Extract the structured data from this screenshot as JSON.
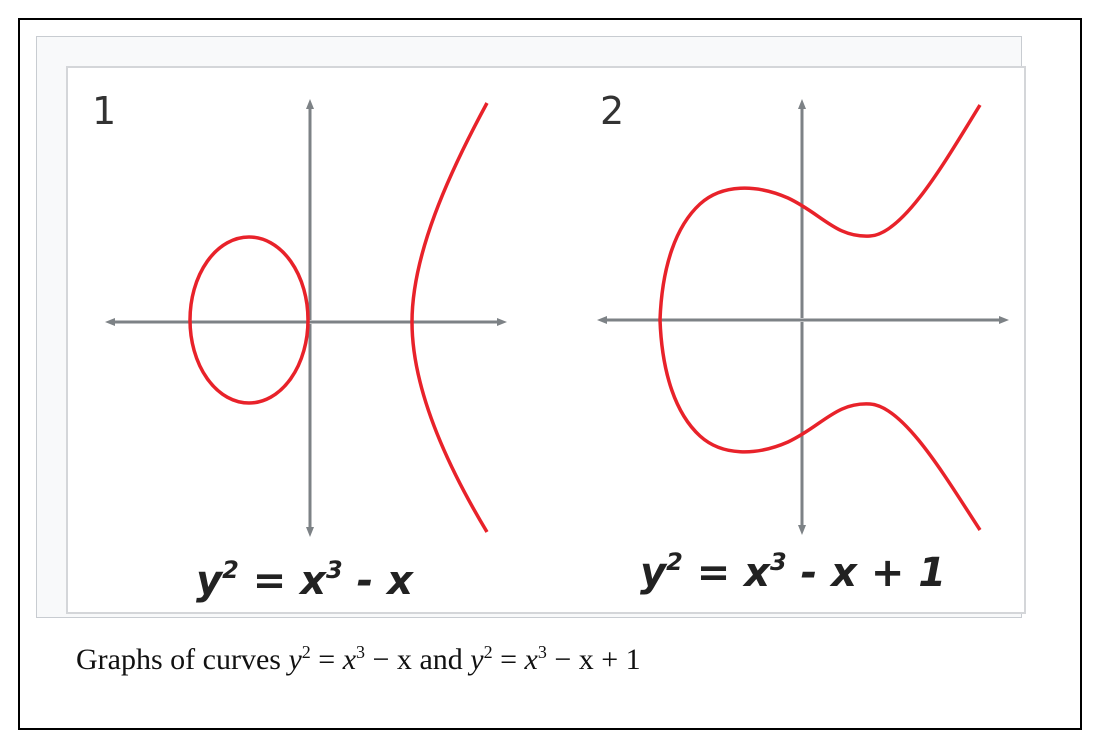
{
  "panels": [
    {
      "number": "1",
      "equation_lhs": "y",
      "equation_lhs_exp": "2",
      "equation_mid": " = x",
      "equation_mid_exp": "3",
      "equation_rhs": " - x"
    },
    {
      "number": "2",
      "equation_lhs": "y",
      "equation_lhs_exp": "2",
      "equation_mid": " = x",
      "equation_mid_exp": "3",
      "equation_rhs": " - x + 1"
    }
  ],
  "caption": {
    "prefix": "Graphs of curves ",
    "eq1_y": "y",
    "eq1_y_exp": "2",
    "eq1_eq": " = ",
    "eq1_x": "x",
    "eq1_x_exp": "3",
    "eq1_rest": " − x",
    "joiner": " and ",
    "eq2_y": "y",
    "eq2_y_exp": "2",
    "eq2_eq": " = ",
    "eq2_x": "x",
    "eq2_x_exp": "3",
    "eq2_rest": " − x + 1"
  },
  "colors": {
    "curve": "#e8222a",
    "axis": "#7d8286",
    "frame": "#000000"
  }
}
